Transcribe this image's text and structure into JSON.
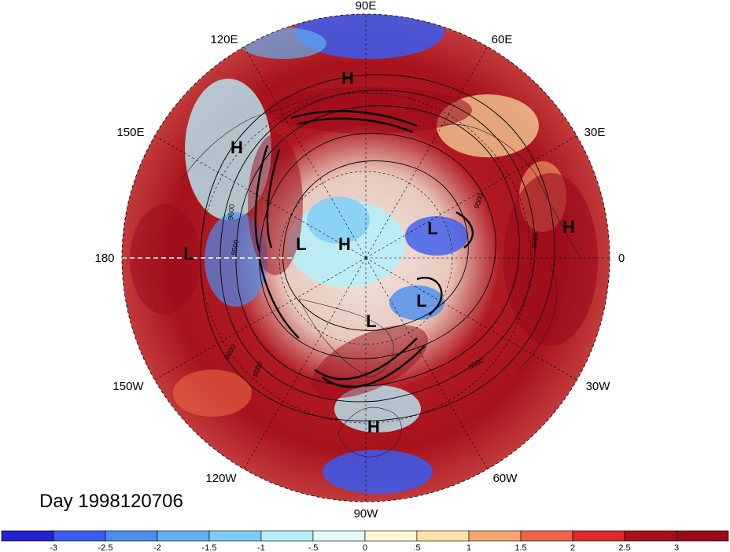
{
  "map": {
    "projection": "north-polar-stereographic",
    "date_label": "Day 1998120706",
    "longitude_labels": [
      "90E",
      "60E",
      "30E",
      "0",
      "30W",
      "60W",
      "90W",
      "120W",
      "150W",
      "180",
      "150E",
      "120E"
    ],
    "pressure_markers": [
      {
        "letter": "H",
        "region": "northern Siberia"
      },
      {
        "letter": "H",
        "region": "western Pacific"
      },
      {
        "letter": "H",
        "region": "Arctic"
      },
      {
        "letter": "H",
        "region": "eastern Atlantic / Africa"
      },
      {
        "letter": "H",
        "region": "Gulf of Mexico"
      },
      {
        "letter": "L",
        "region": "North Pacific"
      },
      {
        "letter": "L",
        "region": "Arctic"
      },
      {
        "letter": "L",
        "region": "Scandinavia"
      },
      {
        "letter": "L",
        "region": "Labrador / Greenland"
      },
      {
        "letter": "L",
        "region": "Hudson Bay"
      }
    ],
    "contour_labels": [
      "9500",
      "9500",
      "9500",
      "9600",
      "9600",
      "9600",
      "9500"
    ]
  },
  "colorbar": {
    "ticks": [
      "-3",
      "-2.5",
      "-2",
      "-1.5",
      "-1",
      "-.5",
      "0",
      ".5",
      "1",
      "1.5",
      "2",
      "2.5",
      "3"
    ],
    "colors": [
      "#2323d0",
      "#3a5cf0",
      "#4a8ef0",
      "#63aef0",
      "#7dcdf5",
      "#b7edf7",
      "#e4f9fa",
      "#fdf6d8",
      "#fde3a5",
      "#f6a670",
      "#ee6647",
      "#df2a2a",
      "#ab0f1c",
      "#990a1a"
    ]
  }
}
